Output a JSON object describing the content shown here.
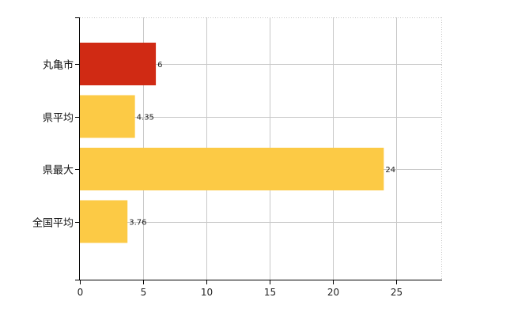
{
  "chart_data": {
    "type": "bar",
    "orientation": "horizontal",
    "categories": [
      "丸亀市",
      "県平均",
      "県最大",
      "全国平均"
    ],
    "values": [
      6,
      4.35,
      24,
      3.76
    ],
    "data_labels": [
      "6",
      "4.35",
      "24",
      "3.76"
    ],
    "colors": [
      "#d02a14",
      "#fcca45",
      "#fcca45",
      "#fcca45"
    ],
    "xlim": [
      0,
      28.6
    ],
    "xticks": [
      0,
      5,
      10,
      15,
      20,
      25
    ],
    "xtick_labels": [
      "0",
      "5",
      "10",
      "15",
      "20",
      "25"
    ],
    "grid": true,
    "title": "",
    "xlabel": "",
    "ylabel": ""
  }
}
